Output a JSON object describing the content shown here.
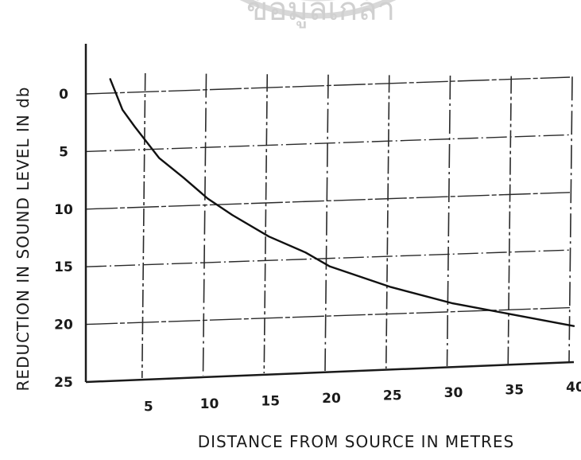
{
  "watermark": {
    "text": "ข้อมูลเกล้า"
  },
  "chart_data": {
    "type": "line",
    "xlabel": "DISTANCE  FROM  SOURCE  IN  METRES",
    "ylabel": "REDUCTION  IN  SOUND  LEVEL  IN  db",
    "xlim": [
      0,
      40
    ],
    "ylim": [
      25,
      -1.5
    ],
    "x_ticks": [
      5,
      10,
      15,
      20,
      25,
      30,
      35,
      40
    ],
    "y_ticks": [
      0,
      5,
      10,
      15,
      20,
      25
    ],
    "x_tick_labels": [
      "5",
      "10",
      "15",
      "20",
      "25",
      "30",
      "35",
      "40"
    ],
    "y_tick_labels": [
      "0",
      "5",
      "10",
      "15",
      "20",
      "25"
    ],
    "grid": true,
    "series": [
      {
        "x": [
          2,
          3,
          4,
          5,
          6,
          8,
          10,
          12,
          15,
          18,
          20,
          25,
          30,
          35,
          40
        ],
        "y": [
          -1.2,
          1.5,
          3.0,
          4.4,
          5.8,
          7.6,
          9.5,
          11.0,
          13.0,
          14.5,
          15.8,
          17.8,
          19.4,
          20.6,
          21.8
        ]
      }
    ]
  }
}
